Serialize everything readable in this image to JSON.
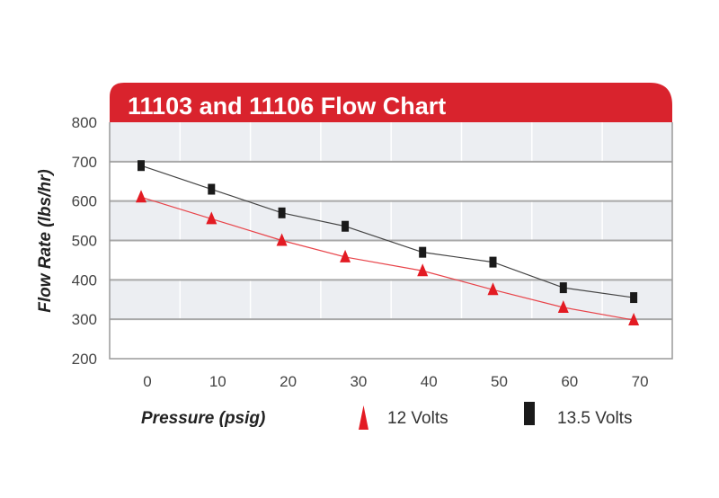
{
  "chart_data": {
    "type": "line",
    "title": "11103 and 11106 Flow Chart",
    "xlabel": "Pressure (psig)",
    "ylabel": "Flow Rate (lbs/hr)",
    "xlim": [
      0,
      70
    ],
    "ylim": [
      200,
      800
    ],
    "x_ticks": [
      0,
      10,
      20,
      30,
      40,
      50,
      60,
      70
    ],
    "y_ticks": [
      200,
      300,
      400,
      500,
      600,
      700,
      800
    ],
    "grid": true,
    "legend_position": "bottom",
    "series": [
      {
        "name": "12 Volts",
        "marker": "triangle",
        "color": "#e31b23",
        "x": [
          0,
          10,
          20,
          29,
          40,
          50,
          60,
          70
        ],
        "y": [
          610,
          555,
          500,
          458,
          423,
          375,
          330,
          298
        ]
      },
      {
        "name": "13.5 Volts",
        "marker": "square",
        "color": "#1a1a1a",
        "x": [
          0,
          10,
          20,
          29,
          40,
          50,
          60,
          70
        ],
        "y": [
          690,
          630,
          570,
          536,
          470,
          445,
          380,
          355
        ]
      }
    ]
  },
  "colors": {
    "title_bar": "#d9232d",
    "band": "#eceef2",
    "gridline": "#a8a8a8"
  }
}
